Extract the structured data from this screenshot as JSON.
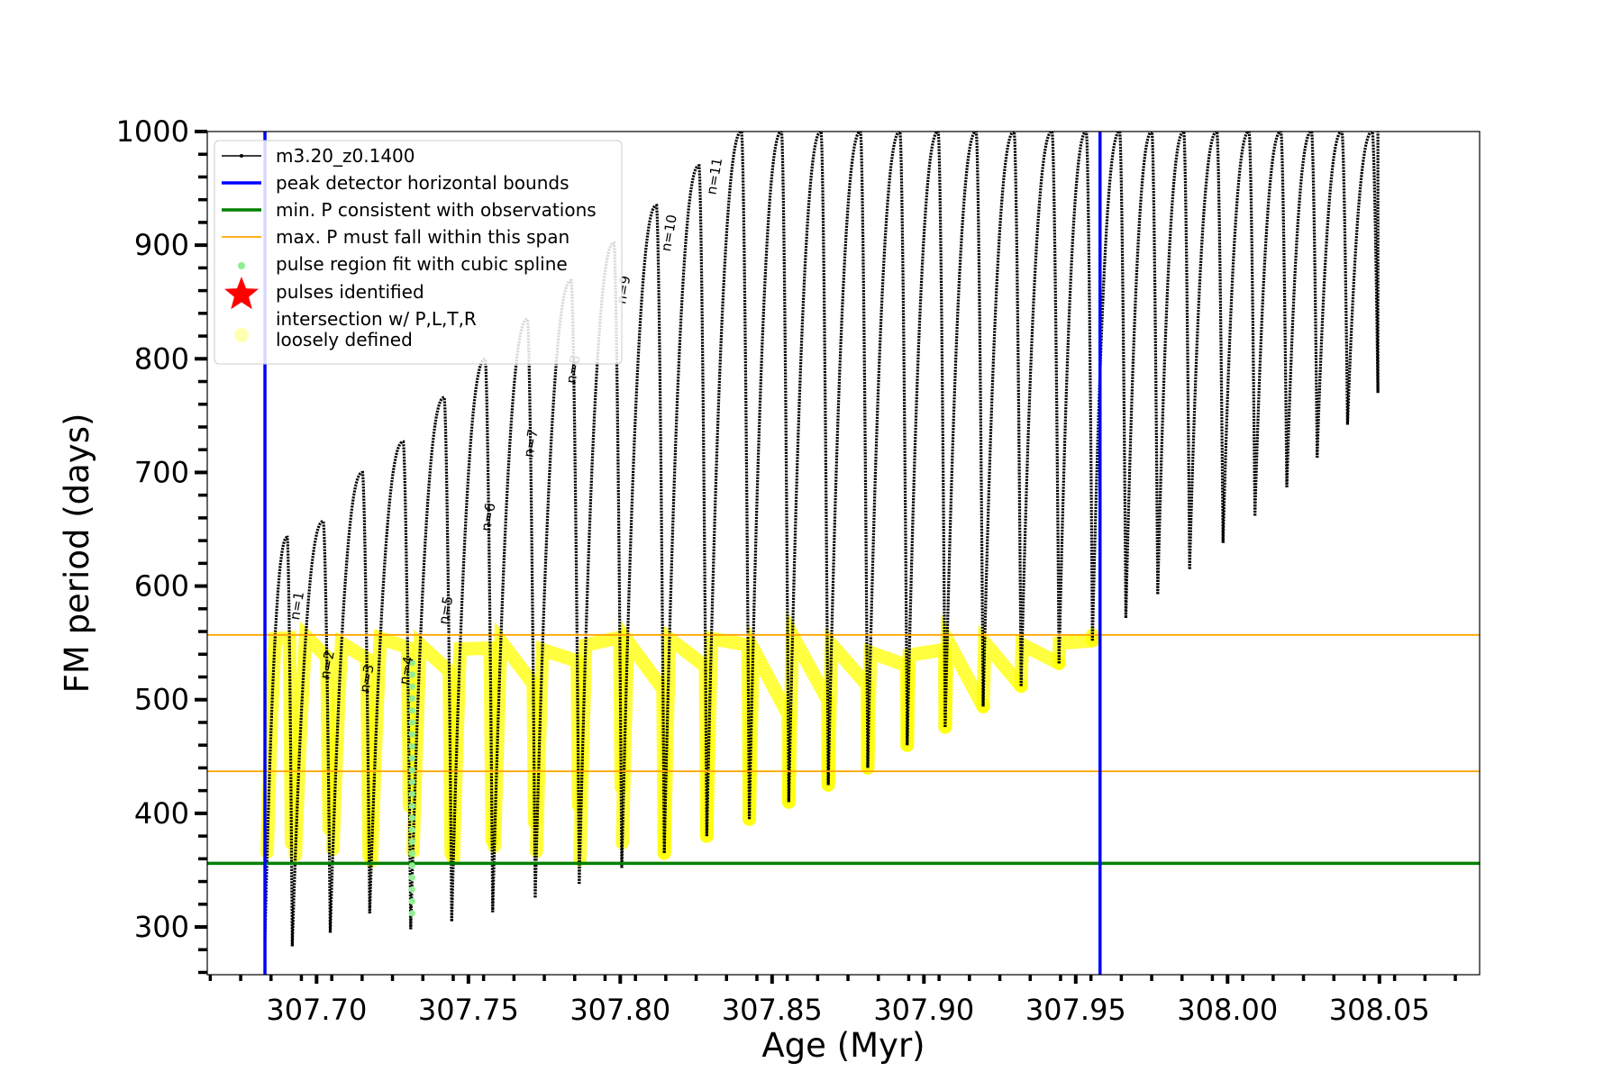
{
  "chart_data": {
    "type": "line",
    "xlabel": "Age (Myr)",
    "ylabel": "FM period (days)",
    "xlim": [
      307.664,
      308.083
    ],
    "ylim": [
      258,
      1000
    ],
    "x_ticks": [
      307.7,
      307.75,
      307.8,
      307.85,
      307.9,
      307.95,
      308.0,
      308.05
    ],
    "x_tick_labels": [
      "307.70",
      "307.75",
      "307.80",
      "307.85",
      "307.90",
      "307.95",
      "308.00",
      "308.05"
    ],
    "y_ticks": [
      300,
      400,
      500,
      600,
      700,
      800,
      900,
      1000
    ],
    "y_tick_labels": [
      "300",
      "400",
      "500",
      "600",
      "700",
      "800",
      "900",
      "1000"
    ],
    "legend": {
      "position": "upper-left",
      "entries": [
        {
          "label": "m3.20_z0.1400",
          "marker": "black-line-dots"
        },
        {
          "label": "peak detector horizontal bounds",
          "marker": "blue-line"
        },
        {
          "label": "min. P consistent with observations",
          "marker": "green-line"
        },
        {
          "label": "max. P must fall within this span",
          "marker": "orange-line"
        },
        {
          "label": "pulse region fit with cubic spline",
          "marker": "lightgreen-dot"
        },
        {
          "label": "pulses identified",
          "marker": "red-star"
        },
        {
          "label": "intersection w/ P,L,T,R\nloosely defined",
          "marker": "yellow-circle"
        }
      ]
    },
    "reference_lines": {
      "vertical_blue": [
        307.683,
        307.958
      ],
      "horizontal_green": 356,
      "horizontal_orange": [
        437,
        557
      ]
    },
    "colors": {
      "track": "#000000",
      "bounds": "#0000ff",
      "min_period": "#008000",
      "max_period_span": "#ffa500",
      "spline": "#90ee90",
      "pulse": "#ff0000",
      "intersection": "#ffff00"
    },
    "pulse_labels": [
      {
        "text": "n=1",
        "x": 307.695,
        "y": 582
      },
      {
        "text": "n=2",
        "x": 307.705,
        "y": 530
      },
      {
        "text": "n=3",
        "x": 307.718,
        "y": 518
      },
      {
        "text": "n=4",
        "x": 307.731,
        "y": 525
      },
      {
        "text": "n=5",
        "x": 307.744,
        "y": 578
      },
      {
        "text": "n=6",
        "x": 307.758,
        "y": 660
      },
      {
        "text": "n=7",
        "x": 307.772,
        "y": 725
      },
      {
        "text": "n=8",
        "x": 307.786,
        "y": 790
      },
      {
        "text": "n=9",
        "x": 307.8025,
        "y": 860
      },
      {
        "text": "n=10",
        "x": 307.8175,
        "y": 910
      },
      {
        "text": "n=11",
        "x": 307.8325,
        "y": 960
      }
    ],
    "pulses": [
      {
        "start": 307.683,
        "end": 307.692,
        "min": 290,
        "max": 643
      },
      {
        "start": 307.692,
        "end": 307.7045,
        "min": 283,
        "max": 657
      },
      {
        "start": 307.7045,
        "end": 307.7175,
        "min": 295,
        "max": 700
      },
      {
        "start": 307.7175,
        "end": 307.731,
        "min": 312,
        "max": 727
      },
      {
        "start": 307.731,
        "end": 307.7445,
        "min": 298,
        "max": 766
      },
      {
        "start": 307.7445,
        "end": 307.758,
        "min": 305,
        "max": 800
      },
      {
        "start": 307.758,
        "end": 307.772,
        "min": 313,
        "max": 835
      },
      {
        "start": 307.772,
        "end": 307.7865,
        "min": 326,
        "max": 869
      },
      {
        "start": 307.7865,
        "end": 307.8005,
        "min": 338,
        "max": 902
      },
      {
        "start": 307.8005,
        "end": 307.8145,
        "min": 352,
        "max": 935
      },
      {
        "start": 307.8145,
        "end": 307.8285,
        "min": 365,
        "max": 970
      },
      {
        "start": 307.8285,
        "end": 307.8425,
        "min": 380,
        "max": 1000
      },
      {
        "start": 307.8425,
        "end": 307.8555,
        "min": 395,
        "max": 1000
      },
      {
        "start": 307.8555,
        "end": 307.8685,
        "min": 410,
        "max": 1000
      },
      {
        "start": 307.8685,
        "end": 307.8815,
        "min": 425,
        "max": 1000
      },
      {
        "start": 307.8815,
        "end": 307.8945,
        "min": 440,
        "max": 1000
      },
      {
        "start": 307.8945,
        "end": 307.907,
        "min": 460,
        "max": 1000
      },
      {
        "start": 307.907,
        "end": 307.9195,
        "min": 476,
        "max": 1000
      },
      {
        "start": 307.9195,
        "end": 307.932,
        "min": 494,
        "max": 1000
      },
      {
        "start": 307.932,
        "end": 307.9445,
        "min": 512,
        "max": 1000
      },
      {
        "start": 307.9445,
        "end": 307.9555,
        "min": 532,
        "max": 1000
      },
      {
        "start": 307.9555,
        "end": 307.9665,
        "min": 552,
        "max": 1000
      },
      {
        "start": 307.9665,
        "end": 307.977,
        "min": 572,
        "max": 1000
      },
      {
        "start": 307.977,
        "end": 307.9875,
        "min": 593,
        "max": 1000
      },
      {
        "start": 307.9875,
        "end": 307.9985,
        "min": 615,
        "max": 1000
      },
      {
        "start": 307.9985,
        "end": 308.009,
        "min": 638,
        "max": 1000
      },
      {
        "start": 308.009,
        "end": 308.0195,
        "min": 662,
        "max": 1000
      },
      {
        "start": 308.0195,
        "end": 308.0295,
        "min": 687,
        "max": 1000
      },
      {
        "start": 308.0295,
        "end": 308.0395,
        "min": 713,
        "max": 1000
      },
      {
        "start": 308.0395,
        "end": 308.0495,
        "min": 742,
        "max": 1000
      },
      {
        "start": 308.0495,
        "end": 308.0495,
        "min": 770,
        "max": 1000
      }
    ]
  }
}
